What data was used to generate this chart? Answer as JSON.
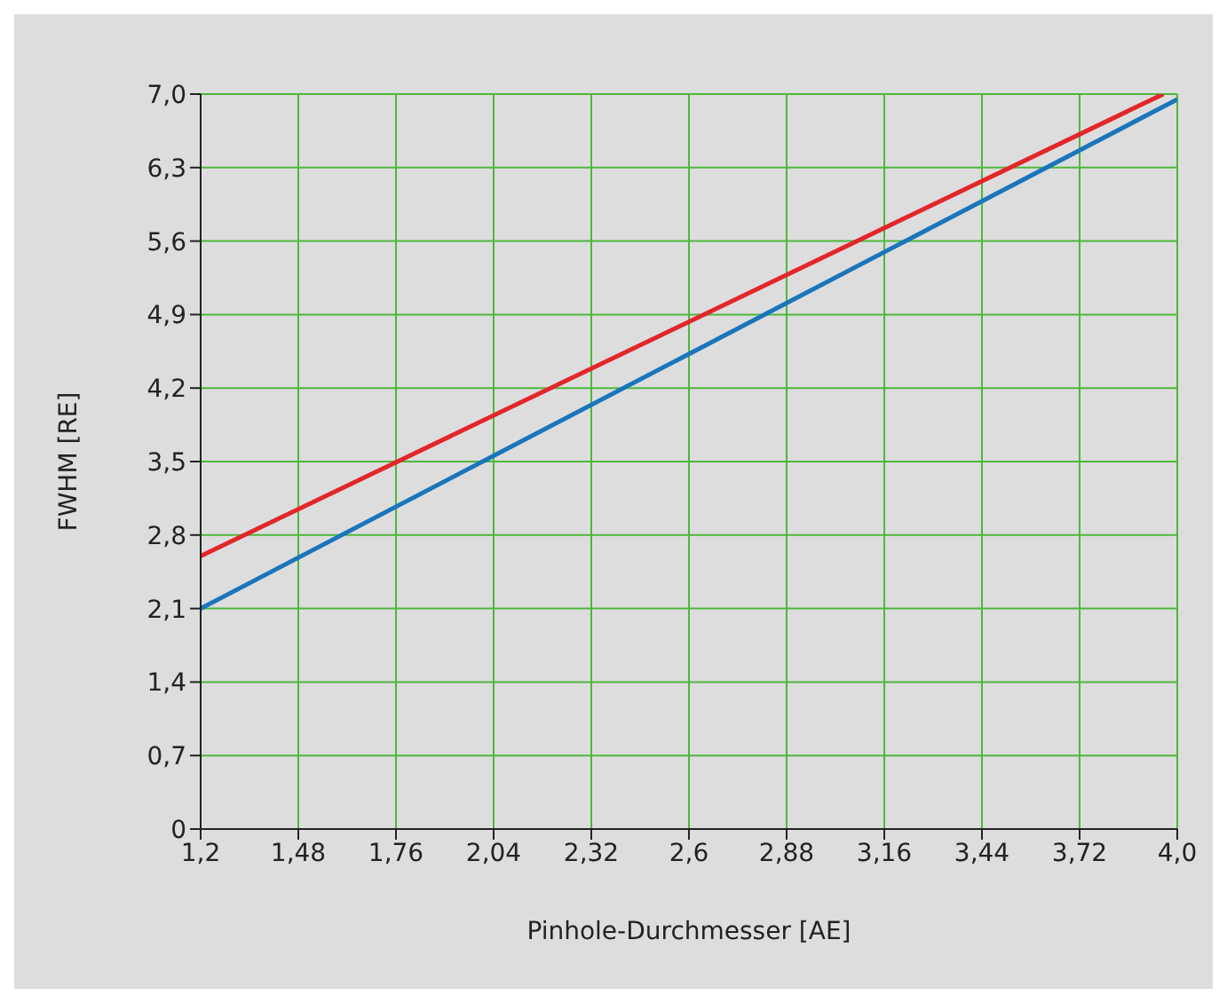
{
  "chart_data": {
    "type": "line",
    "xlabel": "Pinhole-Durchmesser [AE]",
    "ylabel": "FWHM [RE]",
    "series": [
      {
        "color": "#e3262b",
        "x": [
          1.2,
          3.96
        ],
        "values": [
          2.6,
          7.0
        ]
      },
      {
        "color": "#1a75bb",
        "x": [
          1.2,
          4.0
        ],
        "values": [
          2.1,
          6.95
        ]
      }
    ],
    "xlim": [
      1.2,
      4.0
    ],
    "xticks": [
      {
        "value": 1.2,
        "label": "1,2"
      },
      {
        "value": 1.48,
        "label": "1,48"
      },
      {
        "value": 1.76,
        "label": "1,76"
      },
      {
        "value": 2.04,
        "label": "2,04"
      },
      {
        "value": 2.32,
        "label": "2,32"
      },
      {
        "value": 2.6,
        "label": "2,6"
      },
      {
        "value": 2.88,
        "label": "2,88"
      },
      {
        "value": 3.16,
        "label": "3,16"
      },
      {
        "value": 3.44,
        "label": "3,44"
      },
      {
        "value": 3.72,
        "label": "3,72"
      },
      {
        "value": 4.0,
        "label": "4,0"
      }
    ],
    "ylim": [
      0,
      7.0
    ],
    "yticks": [
      0,
      {
        "value": 0.7,
        "label": "0,7"
      },
      {
        "value": 1.4,
        "label": "1,4"
      },
      {
        "value": 2.1,
        "label": "2,1"
      },
      {
        "value": 2.8,
        "label": "2,8"
      },
      {
        "value": 3.5,
        "label": "3,5"
      },
      {
        "value": 4.2,
        "label": "4,2"
      },
      {
        "value": 4.9,
        "label": "4,9"
      },
      {
        "value": 5.6,
        "label": "5,6"
      },
      {
        "value": 6.3,
        "label": "6,3"
      },
      {
        "value": 7.0,
        "label": "7,0"
      }
    ],
    "grid": true,
    "legend": false,
    "marker": "none",
    "line_style": "solid"
  }
}
